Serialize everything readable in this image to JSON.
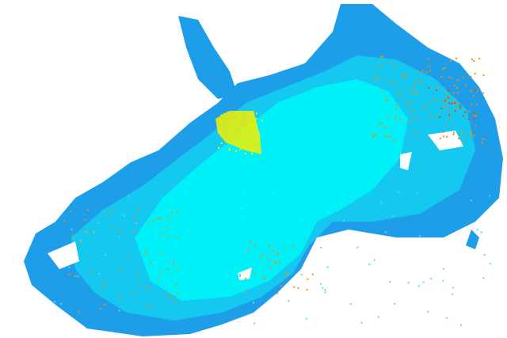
{
  "colors": {
    "background": "#ffffff",
    "outer_echo": "#1e9ee8",
    "mid_echo": "#14c8f0",
    "core_echo": "#00f0f8",
    "light_echo": "#5ad8f8",
    "yellow_cells": "#f0f000",
    "orange_cells": "#f09000",
    "red_cells": "#f04000"
  }
}
